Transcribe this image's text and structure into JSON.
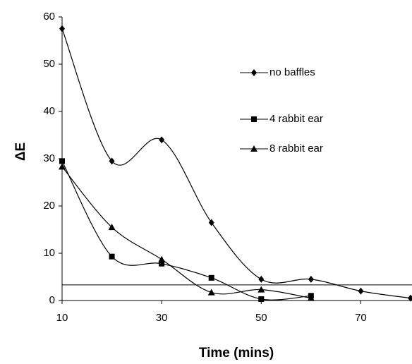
{
  "chart_data": {
    "type": "line",
    "x_label": "Time (mins)",
    "y_label": "ΔE",
    "x": [
      10,
      20,
      30,
      40,
      50,
      60,
      70,
      80
    ],
    "series": [
      {
        "name": "no baffles",
        "color": "#000000",
        "marker": "diamond",
        "values": [
          57.5,
          29.5,
          34,
          16.5,
          4.5,
          4.5,
          2,
          0.5
        ]
      },
      {
        "name": "4 rabbit ear",
        "color": "#000000",
        "marker": "square",
        "values": [
          29.5,
          9.3,
          7.8,
          4.8,
          0.3,
          1,
          null,
          null
        ]
      },
      {
        "name": "8 rabbit ear",
        "color": "#000000",
        "marker": "triangle",
        "values": [
          28.3,
          15.5,
          8.7,
          1.7,
          2.3,
          0.5,
          null,
          null
        ]
      }
    ],
    "reference_line": 3.3,
    "xlim": [
      10,
      80
    ],
    "xticks": [
      10,
      30,
      50,
      70
    ],
    "ylim": [
      0,
      60
    ],
    "yticks": [
      0,
      10,
      20,
      30,
      40,
      50,
      60
    ],
    "smooth": true,
    "legend": "upper right",
    "grid": false
  }
}
